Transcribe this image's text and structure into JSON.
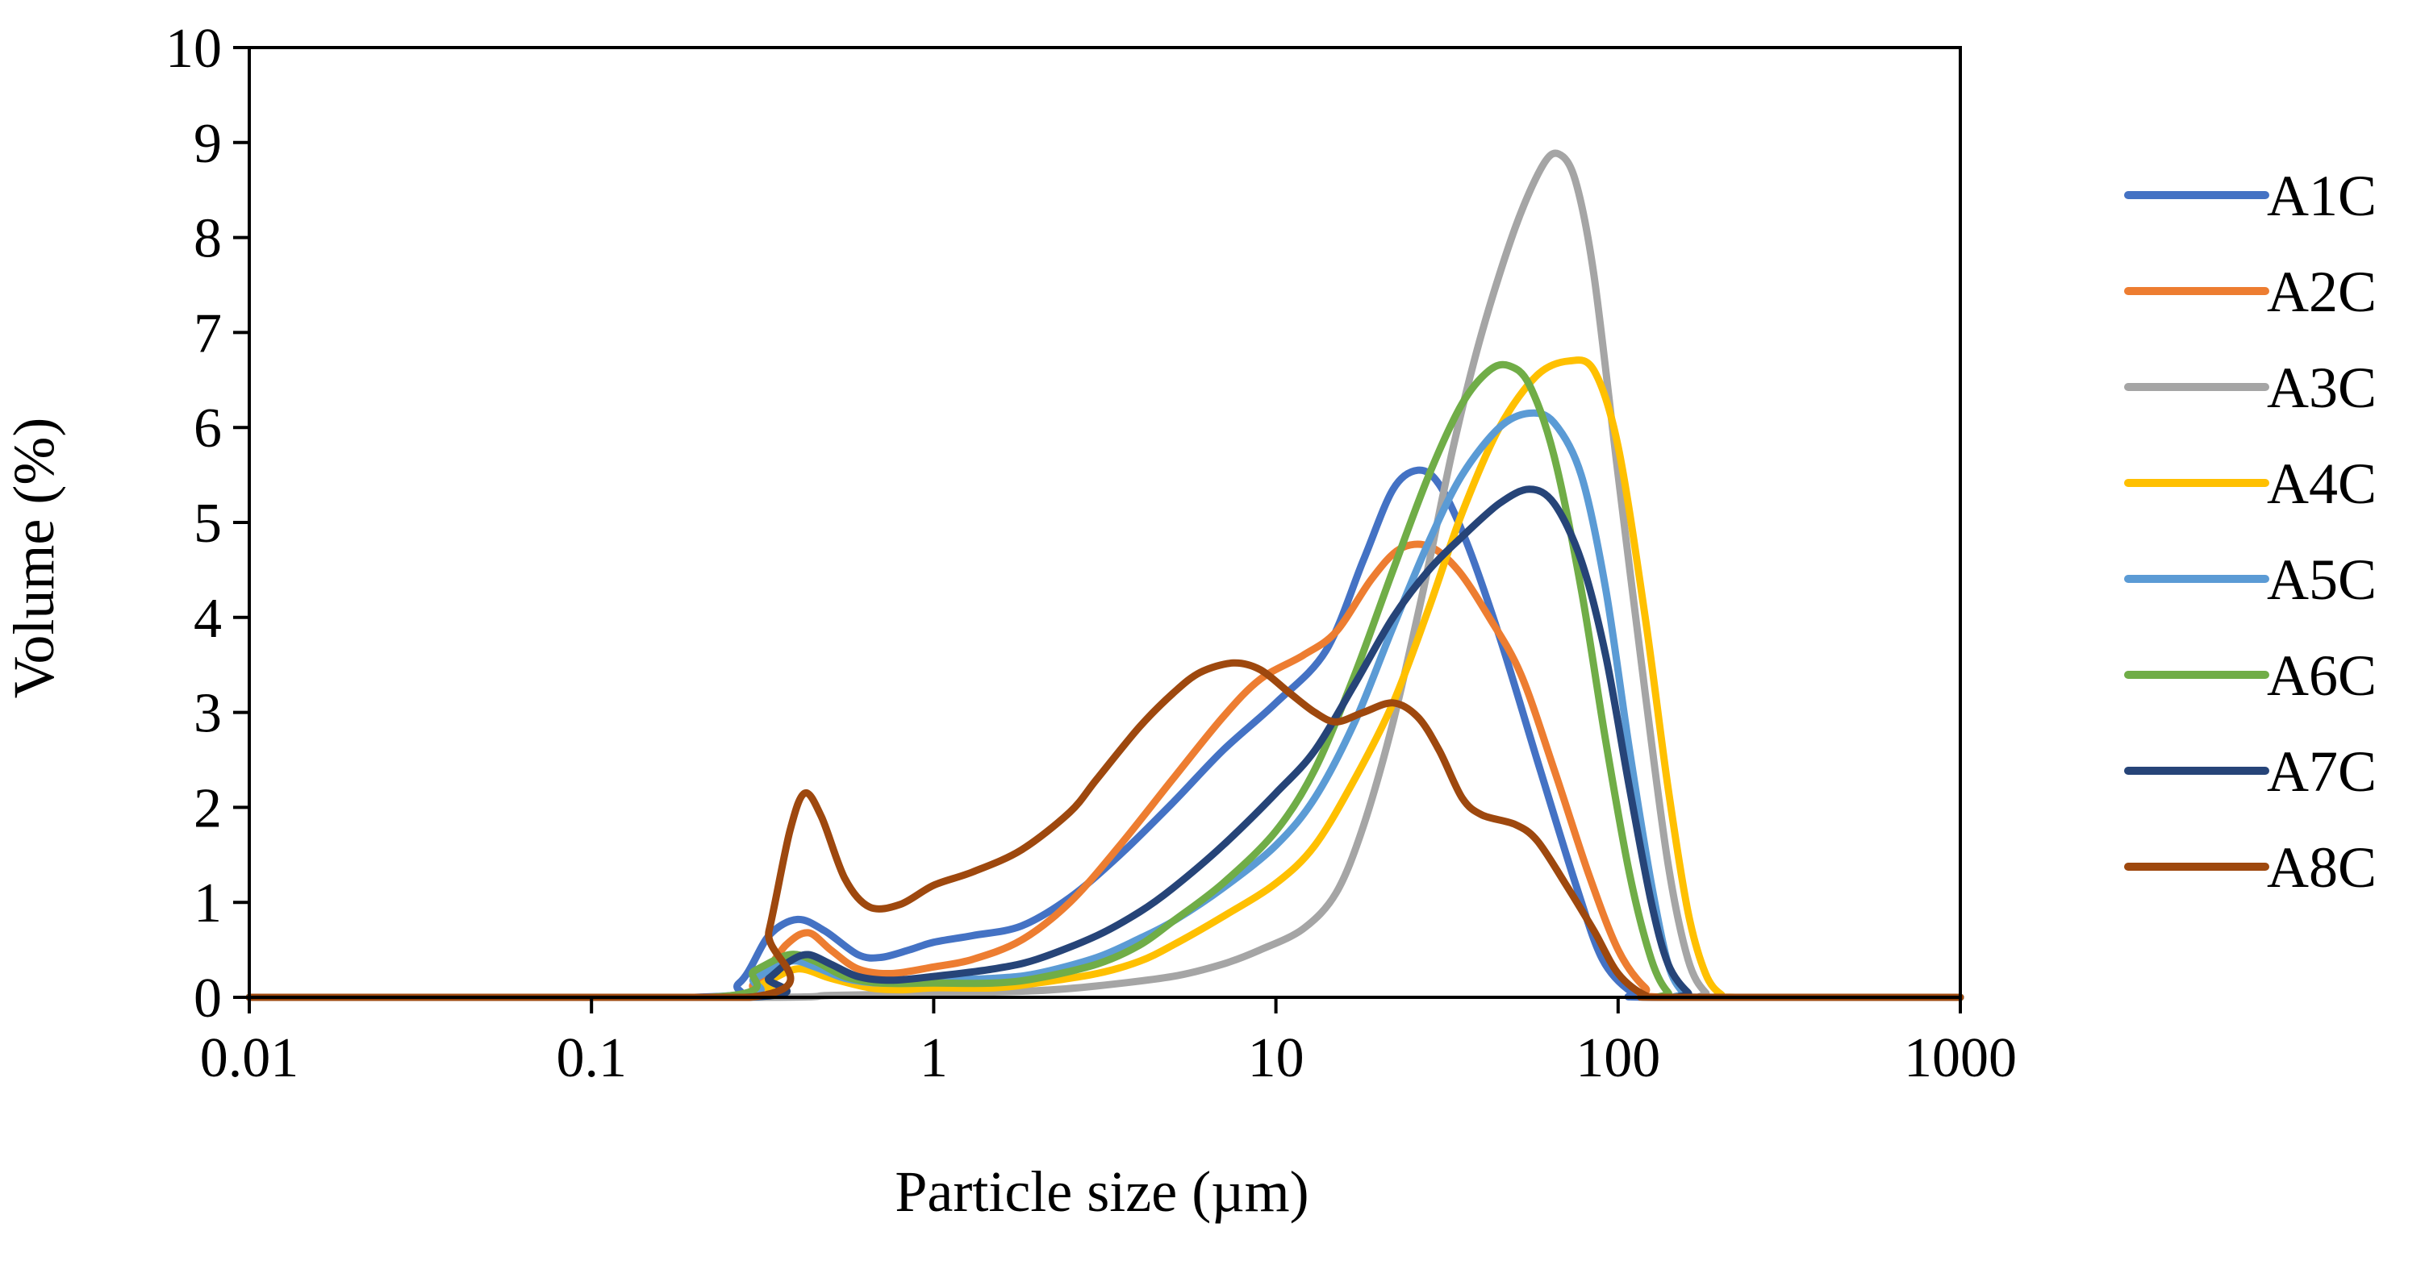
{
  "chart_data": {
    "type": "line",
    "title": "",
    "xlabel": "Particle size (µm)",
    "ylabel": "Volume (%)",
    "x_scale": "log",
    "xlim": [
      0.01,
      1000
    ],
    "ylim": [
      0,
      10
    ],
    "x_ticks": [
      0.01,
      0.1,
      1,
      10,
      100,
      1000
    ],
    "x_tick_labels": [
      "0.01",
      "0.1",
      "1",
      "10",
      "100",
      "1000"
    ],
    "y_ticks": [
      0,
      1,
      2,
      3,
      4,
      5,
      6,
      7,
      8,
      9,
      10
    ],
    "y_tick_labels": [
      "0",
      "1",
      "2",
      "3",
      "4",
      "5",
      "6",
      "7",
      "8",
      "9",
      "10"
    ],
    "grid": false,
    "legend_position": "right",
    "series": [
      {
        "name": "A1C",
        "color": "#4472C4",
        "points": [
          [
            0.01,
            0
          ],
          [
            0.2,
            0
          ],
          [
            0.27,
            0.15
          ],
          [
            0.33,
            0.65
          ],
          [
            0.4,
            0.82
          ],
          [
            0.48,
            0.7
          ],
          [
            0.6,
            0.45
          ],
          [
            0.7,
            0.42
          ],
          [
            0.85,
            0.5
          ],
          [
            1,
            0.58
          ],
          [
            1.3,
            0.65
          ],
          [
            1.8,
            0.75
          ],
          [
            2.5,
            1.05
          ],
          [
            3.5,
            1.5
          ],
          [
            5,
            2.05
          ],
          [
            7,
            2.6
          ],
          [
            10,
            3.1
          ],
          [
            14,
            3.65
          ],
          [
            18,
            4.6
          ],
          [
            22,
            5.35
          ],
          [
            26,
            5.55
          ],
          [
            30,
            5.4
          ],
          [
            36,
            4.8
          ],
          [
            45,
            3.8
          ],
          [
            58,
            2.5
          ],
          [
            75,
            1.2
          ],
          [
            90,
            0.4
          ],
          [
            110,
            0.05
          ],
          [
            130,
            0
          ],
          [
            1000,
            0
          ]
        ]
      },
      {
        "name": "A2C",
        "color": "#ED7D31",
        "points": [
          [
            0.01,
            0
          ],
          [
            0.22,
            0
          ],
          [
            0.3,
            0.15
          ],
          [
            0.37,
            0.55
          ],
          [
            0.43,
            0.68
          ],
          [
            0.5,
            0.5
          ],
          [
            0.6,
            0.3
          ],
          [
            0.75,
            0.25
          ],
          [
            1,
            0.32
          ],
          [
            1.3,
            0.4
          ],
          [
            1.8,
            0.6
          ],
          [
            2.5,
            1.0
          ],
          [
            3.5,
            1.6
          ],
          [
            5,
            2.3
          ],
          [
            7,
            2.95
          ],
          [
            9,
            3.35
          ],
          [
            12,
            3.6
          ],
          [
            15,
            3.85
          ],
          [
            19,
            4.4
          ],
          [
            23,
            4.72
          ],
          [
            28,
            4.75
          ],
          [
            34,
            4.5
          ],
          [
            42,
            4.0
          ],
          [
            52,
            3.4
          ],
          [
            65,
            2.4
          ],
          [
            82,
            1.3
          ],
          [
            100,
            0.5
          ],
          [
            120,
            0.1
          ],
          [
            140,
            0
          ],
          [
            1000,
            0
          ]
        ]
      },
      {
        "name": "A3C",
        "color": "#A5A5A5",
        "points": [
          [
            0.01,
            0
          ],
          [
            0.3,
            0
          ],
          [
            0.5,
            0.02
          ],
          [
            1,
            0.04
          ],
          [
            2,
            0.07
          ],
          [
            3,
            0.12
          ],
          [
            5,
            0.22
          ],
          [
            7,
            0.35
          ],
          [
            9,
            0.5
          ],
          [
            12,
            0.72
          ],
          [
            15,
            1.1
          ],
          [
            18,
            1.8
          ],
          [
            22,
            2.9
          ],
          [
            27,
            4.3
          ],
          [
            33,
            5.8
          ],
          [
            40,
            7.0
          ],
          [
            50,
            8.1
          ],
          [
            60,
            8.75
          ],
          [
            67,
            8.88
          ],
          [
            75,
            8.6
          ],
          [
            85,
            7.6
          ],
          [
            100,
            5.5
          ],
          [
            120,
            3.2
          ],
          [
            140,
            1.4
          ],
          [
            160,
            0.4
          ],
          [
            180,
            0.05
          ],
          [
            200,
            0
          ],
          [
            1000,
            0
          ]
        ]
      },
      {
        "name": "A4C",
        "color": "#FFC000",
        "points": [
          [
            0.01,
            0
          ],
          [
            0.25,
            0
          ],
          [
            0.32,
            0.15
          ],
          [
            0.4,
            0.3
          ],
          [
            0.5,
            0.2
          ],
          [
            0.65,
            0.1
          ],
          [
            0.8,
            0.08
          ],
          [
            1,
            0.1
          ],
          [
            1.5,
            0.1
          ],
          [
            2,
            0.15
          ],
          [
            3,
            0.25
          ],
          [
            4,
            0.38
          ],
          [
            5,
            0.55
          ],
          [
            7,
            0.85
          ],
          [
            10,
            1.2
          ],
          [
            13,
            1.6
          ],
          [
            17,
            2.3
          ],
          [
            22,
            3.1
          ],
          [
            28,
            4.1
          ],
          [
            35,
            5.1
          ],
          [
            45,
            6.0
          ],
          [
            58,
            6.55
          ],
          [
            72,
            6.7
          ],
          [
            85,
            6.6
          ],
          [
            100,
            5.8
          ],
          [
            120,
            4.0
          ],
          [
            140,
            2.2
          ],
          [
            160,
            0.9
          ],
          [
            180,
            0.25
          ],
          [
            200,
            0.03
          ],
          [
            220,
            0
          ],
          [
            1000,
            0
          ]
        ]
      },
      {
        "name": "A5C",
        "color": "#5B9BD5",
        "points": [
          [
            0.01,
            0
          ],
          [
            0.23,
            0
          ],
          [
            0.3,
            0.2
          ],
          [
            0.38,
            0.38
          ],
          [
            0.45,
            0.32
          ],
          [
            0.55,
            0.2
          ],
          [
            0.7,
            0.15
          ],
          [
            1,
            0.18
          ],
          [
            1.5,
            0.2
          ],
          [
            2,
            0.25
          ],
          [
            3,
            0.42
          ],
          [
            4,
            0.62
          ],
          [
            5,
            0.8
          ],
          [
            7,
            1.15
          ],
          [
            10,
            1.6
          ],
          [
            13,
            2.1
          ],
          [
            17,
            2.9
          ],
          [
            22,
            3.9
          ],
          [
            28,
            4.8
          ],
          [
            35,
            5.5
          ],
          [
            45,
            6.0
          ],
          [
            55,
            6.15
          ],
          [
            65,
            6.05
          ],
          [
            78,
            5.5
          ],
          [
            92,
            4.3
          ],
          [
            108,
            2.6
          ],
          [
            125,
            1.2
          ],
          [
            140,
            0.35
          ],
          [
            155,
            0.05
          ],
          [
            170,
            0
          ],
          [
            1000,
            0
          ]
        ]
      },
      {
        "name": "A6C",
        "color": "#70AD47",
        "points": [
          [
            0.01,
            0
          ],
          [
            0.22,
            0
          ],
          [
            0.3,
            0.28
          ],
          [
            0.38,
            0.45
          ],
          [
            0.45,
            0.38
          ],
          [
            0.55,
            0.22
          ],
          [
            0.7,
            0.15
          ],
          [
            1,
            0.15
          ],
          [
            1.5,
            0.15
          ],
          [
            2,
            0.2
          ],
          [
            3,
            0.35
          ],
          [
            4,
            0.55
          ],
          [
            5,
            0.8
          ],
          [
            7,
            1.2
          ],
          [
            10,
            1.75
          ],
          [
            13,
            2.4
          ],
          [
            17,
            3.4
          ],
          [
            22,
            4.5
          ],
          [
            28,
            5.5
          ],
          [
            35,
            6.25
          ],
          [
            42,
            6.6
          ],
          [
            48,
            6.65
          ],
          [
            55,
            6.45
          ],
          [
            65,
            5.7
          ],
          [
            78,
            4.3
          ],
          [
            92,
            2.7
          ],
          [
            108,
            1.3
          ],
          [
            125,
            0.4
          ],
          [
            140,
            0.05
          ],
          [
            155,
            0
          ],
          [
            1000,
            0
          ]
        ]
      },
      {
        "name": "A7C",
        "color": "#264478",
        "points": [
          [
            0.01,
            0
          ],
          [
            0.28,
            0
          ],
          [
            0.33,
            0.2
          ],
          [
            0.38,
            0.38
          ],
          [
            0.43,
            0.45
          ],
          [
            0.5,
            0.35
          ],
          [
            0.6,
            0.22
          ],
          [
            0.75,
            0.18
          ],
          [
            1,
            0.22
          ],
          [
            1.5,
            0.3
          ],
          [
            2,
            0.4
          ],
          [
            3,
            0.65
          ],
          [
            4,
            0.9
          ],
          [
            5,
            1.15
          ],
          [
            7,
            1.6
          ],
          [
            10,
            2.15
          ],
          [
            13,
            2.6
          ],
          [
            17,
            3.3
          ],
          [
            22,
            4.0
          ],
          [
            28,
            4.5
          ],
          [
            35,
            4.85
          ],
          [
            45,
            5.2
          ],
          [
            55,
            5.35
          ],
          [
            65,
            5.2
          ],
          [
            78,
            4.6
          ],
          [
            92,
            3.6
          ],
          [
            108,
            2.2
          ],
          [
            125,
            1.0
          ],
          [
            140,
            0.35
          ],
          [
            160,
            0.05
          ],
          [
            175,
            0
          ],
          [
            1000,
            0
          ]
        ]
      },
      {
        "name": "A8C",
        "color": "#9E480E",
        "points": [
          [
            0.01,
            0
          ],
          [
            0.29,
            0
          ],
          [
            0.33,
            0.7
          ],
          [
            0.38,
            1.75
          ],
          [
            0.42,
            2.15
          ],
          [
            0.47,
            1.9
          ],
          [
            0.55,
            1.25
          ],
          [
            0.65,
            0.95
          ],
          [
            0.8,
            0.98
          ],
          [
            1,
            1.18
          ],
          [
            1.3,
            1.32
          ],
          [
            1.8,
            1.55
          ],
          [
            2.5,
            1.95
          ],
          [
            3,
            2.3
          ],
          [
            4,
            2.85
          ],
          [
            5,
            3.2
          ],
          [
            6,
            3.42
          ],
          [
            7.5,
            3.52
          ],
          [
            9,
            3.45
          ],
          [
            11,
            3.2
          ],
          [
            13,
            3.0
          ],
          [
            15,
            2.9
          ],
          [
            18,
            3.0
          ],
          [
            22,
            3.1
          ],
          [
            26,
            2.95
          ],
          [
            30,
            2.6
          ],
          [
            35,
            2.1
          ],
          [
            40,
            1.92
          ],
          [
            50,
            1.82
          ],
          [
            58,
            1.65
          ],
          [
            70,
            1.2
          ],
          [
            85,
            0.7
          ],
          [
            100,
            0.25
          ],
          [
            120,
            0.02
          ],
          [
            140,
            0
          ],
          [
            1000,
            0
          ]
        ]
      }
    ]
  }
}
